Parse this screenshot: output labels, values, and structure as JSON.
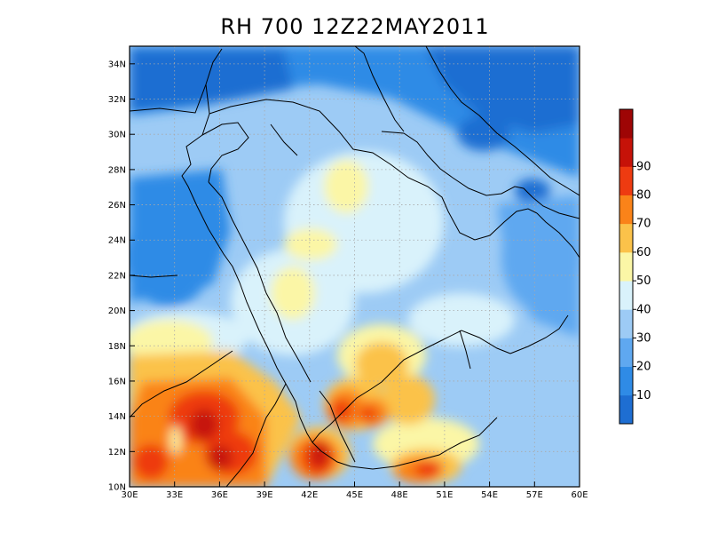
{
  "title": "RH 700 12Z22MAY2011",
  "map": {
    "lon_range": [
      30,
      60
    ],
    "lat_range": [
      10,
      35
    ],
    "x_ticks": [
      30,
      33,
      36,
      39,
      42,
      45,
      48,
      51,
      54,
      57,
      60
    ],
    "x_tick_labels": [
      "30E",
      "33E",
      "36E",
      "39E",
      "42E",
      "45E",
      "48E",
      "51E",
      "54E",
      "57E",
      "60E"
    ],
    "y_ticks": [
      10,
      12,
      14,
      16,
      18,
      20,
      22,
      24,
      26,
      28,
      30,
      32,
      34
    ],
    "y_tick_labels": [
      "10N",
      "12N",
      "14N",
      "16N",
      "18N",
      "20N",
      "22N",
      "24N",
      "26N",
      "28N",
      "30N",
      "32N",
      "34N"
    ],
    "grid": "dotted"
  },
  "colorbar": {
    "levels": [
      0,
      10,
      20,
      30,
      40,
      50,
      60,
      70,
      80,
      90,
      100
    ],
    "labels": [
      "10",
      "20",
      "30",
      "40",
      "50",
      "60",
      "70",
      "80",
      "90"
    ],
    "colors": [
      "#1e6ed2",
      "#2f8be6",
      "#5fa8f0",
      "#9dcbf5",
      "#d9f2fb",
      "#fbf6a6",
      "#fbc24a",
      "#fa8319",
      "#ee3b11",
      "#c61208",
      "#9e0505"
    ]
  }
}
